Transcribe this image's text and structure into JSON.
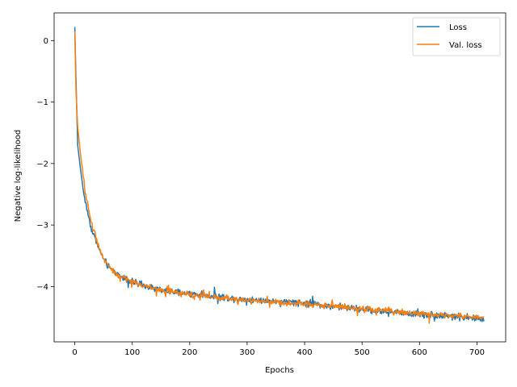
{
  "chart_data": {
    "type": "line",
    "title": "",
    "xlabel": "Epochs",
    "ylabel": "Negative log-likelihood",
    "xlim": [
      -36,
      750
    ],
    "ylim": [
      -4.9,
      0.45
    ],
    "x_ticks": [
      0,
      100,
      200,
      300,
      400,
      500,
      600,
      700
    ],
    "x_tick_labels": [
      "0",
      "100",
      "200",
      "300",
      "400",
      "500",
      "600",
      "700"
    ],
    "y_ticks": [
      0,
      -1,
      -2,
      -3,
      -4
    ],
    "y_tick_labels": [
      "0",
      "−1",
      "−2",
      "−3",
      "−4"
    ],
    "grid": false,
    "legend_position": "upper right",
    "series": [
      {
        "name": "Loss",
        "color": "#1f77b4",
        "noise": 0.05,
        "x": [
          0,
          2,
          5,
          10,
          15,
          20,
          25,
          30,
          35,
          40,
          50,
          60,
          75,
          100,
          125,
          150,
          175,
          200,
          250,
          300,
          350,
          400,
          450,
          500,
          550,
          600,
          650,
          700,
          712
        ],
        "y": [
          0.22,
          -0.6,
          -1.7,
          -2.1,
          -2.45,
          -2.7,
          -2.9,
          -3.1,
          -3.2,
          -3.35,
          -3.55,
          -3.7,
          -3.8,
          -3.93,
          -4.0,
          -4.06,
          -4.1,
          -4.12,
          -4.17,
          -4.21,
          -4.24,
          -4.27,
          -4.32,
          -4.37,
          -4.42,
          -4.45,
          -4.48,
          -4.52,
          -4.55
        ]
      },
      {
        "name": "Val. loss",
        "color": "#ff7f0e",
        "noise": 0.045,
        "x": [
          0,
          2,
          5,
          10,
          15,
          20,
          25,
          30,
          35,
          40,
          50,
          60,
          75,
          100,
          125,
          150,
          175,
          200,
          250,
          300,
          350,
          400,
          450,
          500,
          550,
          600,
          650,
          700,
          712
        ],
        "y": [
          0.15,
          -0.8,
          -1.4,
          -1.85,
          -2.25,
          -2.55,
          -2.8,
          -3.0,
          -3.15,
          -3.3,
          -3.55,
          -3.7,
          -3.82,
          -3.92,
          -4.0,
          -4.06,
          -4.1,
          -4.13,
          -4.18,
          -4.22,
          -4.25,
          -4.28,
          -4.32,
          -4.36,
          -4.4,
          -4.44,
          -4.47,
          -4.5,
          -4.53
        ]
      }
    ]
  }
}
